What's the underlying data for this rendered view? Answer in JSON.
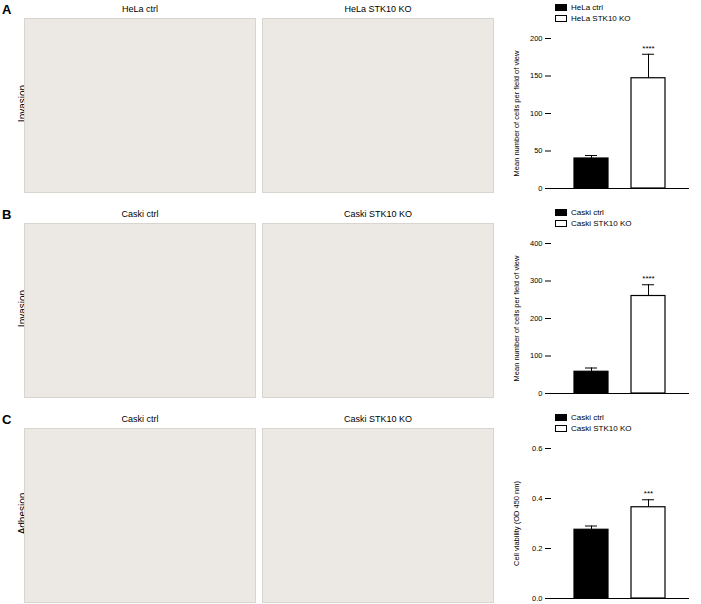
{
  "chart_data": [
    {
      "type": "bar",
      "categories": [
        "HeLa ctrl",
        "HeLa STK10 KO"
      ],
      "values": [
        40,
        147
      ],
      "errors": [
        4,
        32
      ],
      "colors": [
        "#000000",
        "#ffffff"
      ],
      "ylabel": "Mean number of cells per field of view",
      "ylim": [
        0,
        200
      ],
      "yticks": [
        0,
        50,
        100,
        150,
        200
      ],
      "legend": "top-left",
      "tick_labels": "y",
      "annotations": [
        {
          "x": "HeLa STK10 KO",
          "text": "****"
        }
      ]
    },
    {
      "type": "bar",
      "categories": [
        "Caski ctrl",
        "Caski STK10 KO"
      ],
      "values": [
        58,
        260
      ],
      "errors": [
        10,
        30
      ],
      "colors": [
        "#000000",
        "#ffffff"
      ],
      "ylabel": "Mean number of cells per field of view",
      "ylim": [
        0,
        400
      ],
      "yticks": [
        0,
        100,
        200,
        300,
        400
      ],
      "legend": "top-left",
      "tick_labels": "y",
      "annotations": [
        {
          "x": "Caski STK10 KO",
          "text": "****"
        }
      ]
    },
    {
      "type": "bar",
      "categories": [
        "Caski ctrl",
        "Caski STK10 KO"
      ],
      "values": [
        0.275,
        0.365
      ],
      "errors": [
        0.015,
        0.03
      ],
      "colors": [
        "#000000",
        "#ffffff"
      ],
      "ylabel": "Cell viability (OD 450 nm)",
      "ylim": [
        0,
        0.6
      ],
      "yticks": [
        {
          "value": 0,
          "label": "0.0"
        },
        {
          "value": 0.2,
          "label": "0.2"
        },
        {
          "value": 0.4,
          "label": "0.4"
        },
        {
          "value": 0.6,
          "label": "0.6"
        }
      ],
      "legend": "top-left",
      "tick_labels": "y",
      "annotations": [
        {
          "x": "Caski STK10 KO",
          "text": "***"
        }
      ]
    }
  ],
  "panels": [
    {
      "letter": "A",
      "row_label": "Invasion",
      "image_titles": [
        "HeLa ctrl",
        "HeLa STK10 KO"
      ]
    },
    {
      "letter": "B",
      "row_label": "Invasion",
      "image_titles": [
        "Caski ctrl",
        "Caski STK10 KO"
      ]
    },
    {
      "letter": "C",
      "row_label": "Adhesion",
      "image_titles": [
        "Caski ctrl",
        "Caski STK10 KO"
      ]
    }
  ]
}
